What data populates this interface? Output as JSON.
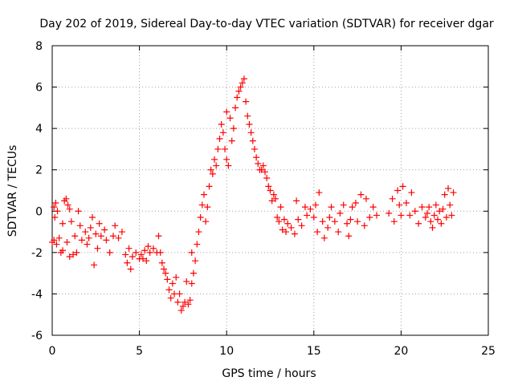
{
  "chart_data": {
    "type": "scatter",
    "title": "Day 202 of 2019, Sidereal Day-to-day VTEC variation (SDTVAR) for receiver dgar",
    "xlabel": "GPS time / hours",
    "ylabel": "SDTVAR / TECUs",
    "xlim": [
      0,
      25
    ],
    "ylim": [
      -6,
      8
    ],
    "xticks": [
      "0",
      "5",
      "10",
      "15",
      "20",
      "25"
    ],
    "yticks": [
      "-6",
      "-4",
      "-2",
      "0",
      "2",
      "4",
      "6",
      "8"
    ],
    "grid": true,
    "marker": "plus",
    "color": "#ff0000",
    "series": [
      {
        "name": "SDTVAR",
        "points": [
          [
            0.0,
            -1.5
          ],
          [
            0.1,
            -1.4
          ],
          [
            0.1,
            0.2
          ],
          [
            0.15,
            -0.3
          ],
          [
            0.2,
            0.4
          ],
          [
            0.25,
            -1.6
          ],
          [
            0.3,
            0.0
          ],
          [
            0.4,
            -1.3
          ],
          [
            0.5,
            -2.0
          ],
          [
            0.6,
            -0.6
          ],
          [
            0.6,
            -1.9
          ],
          [
            0.7,
            0.5
          ],
          [
            0.8,
            0.6
          ],
          [
            0.85,
            -1.5
          ],
          [
            0.9,
            0.3
          ],
          [
            1.0,
            0.1
          ],
          [
            1.0,
            -2.2
          ],
          [
            1.1,
            -0.5
          ],
          [
            1.2,
            -2.1
          ],
          [
            1.3,
            -1.2
          ],
          [
            1.4,
            -2.0
          ],
          [
            1.5,
            0.0
          ],
          [
            1.6,
            -0.7
          ],
          [
            1.7,
            -1.4
          ],
          [
            1.9,
            -1.0
          ],
          [
            2.0,
            -1.6
          ],
          [
            2.1,
            -1.3
          ],
          [
            2.2,
            -0.8
          ],
          [
            2.3,
            -0.3
          ],
          [
            2.4,
            -2.6
          ],
          [
            2.5,
            -1.1
          ],
          [
            2.6,
            -1.8
          ],
          [
            2.7,
            -0.6
          ],
          [
            2.8,
            -1.2
          ],
          [
            3.0,
            -0.9
          ],
          [
            3.1,
            -1.4
          ],
          [
            3.3,
            -2.0
          ],
          [
            3.5,
            -1.2
          ],
          [
            3.6,
            -0.7
          ],
          [
            3.8,
            -1.3
          ],
          [
            4.0,
            -1.0
          ],
          [
            4.2,
            -2.1
          ],
          [
            4.3,
            -2.5
          ],
          [
            4.4,
            -1.8
          ],
          [
            4.5,
            -2.8
          ],
          [
            4.6,
            -2.2
          ],
          [
            4.8,
            -2.0
          ],
          [
            5.0,
            -2.3
          ],
          [
            5.1,
            -2.1
          ],
          [
            5.2,
            -2.3
          ],
          [
            5.3,
            -1.9
          ],
          [
            5.4,
            -2.4
          ],
          [
            5.5,
            -1.7
          ],
          [
            5.6,
            -2.0
          ],
          [
            5.8,
            -1.8
          ],
          [
            6.0,
            -2.0
          ],
          [
            6.1,
            -1.2
          ],
          [
            6.2,
            -2.0
          ],
          [
            6.3,
            -2.5
          ],
          [
            6.4,
            -2.8
          ],
          [
            6.5,
            -3.0
          ],
          [
            6.6,
            -3.3
          ],
          [
            6.7,
            -3.8
          ],
          [
            6.8,
            -4.2
          ],
          [
            6.9,
            -3.5
          ],
          [
            7.0,
            -4.0
          ],
          [
            7.1,
            -3.2
          ],
          [
            7.2,
            -4.4
          ],
          [
            7.3,
            -4.0
          ],
          [
            7.4,
            -4.8
          ],
          [
            7.5,
            -4.6
          ],
          [
            7.6,
            -4.4
          ],
          [
            7.7,
            -3.4
          ],
          [
            7.8,
            -4.5
          ],
          [
            7.9,
            -4.3
          ],
          [
            8.0,
            -2.0
          ],
          [
            8.0,
            -3.5
          ],
          [
            8.1,
            -3.0
          ],
          [
            8.2,
            -2.4
          ],
          [
            8.3,
            -1.6
          ],
          [
            8.4,
            -1.0
          ],
          [
            8.5,
            -0.3
          ],
          [
            8.6,
            0.3
          ],
          [
            8.7,
            0.8
          ],
          [
            8.8,
            -0.5
          ],
          [
            8.9,
            0.2
          ],
          [
            9.0,
            1.2
          ],
          [
            9.1,
            2.0
          ],
          [
            9.2,
            1.8
          ],
          [
            9.3,
            2.5
          ],
          [
            9.4,
            2.2
          ],
          [
            9.5,
            3.0
          ],
          [
            9.6,
            3.5
          ],
          [
            9.7,
            4.2
          ],
          [
            9.8,
            3.8
          ],
          [
            9.9,
            3.0
          ],
          [
            10.0,
            2.5
          ],
          [
            10.0,
            4.8
          ],
          [
            10.1,
            2.2
          ],
          [
            10.2,
            4.5
          ],
          [
            10.3,
            3.4
          ],
          [
            10.4,
            4.0
          ],
          [
            10.5,
            5.0
          ],
          [
            10.6,
            5.5
          ],
          [
            10.7,
            5.8
          ],
          [
            10.8,
            6.0
          ],
          [
            10.9,
            6.2
          ],
          [
            11.0,
            6.4
          ],
          [
            11.1,
            5.3
          ],
          [
            11.2,
            4.6
          ],
          [
            11.3,
            4.2
          ],
          [
            11.4,
            3.8
          ],
          [
            11.5,
            3.4
          ],
          [
            11.6,
            3.0
          ],
          [
            11.7,
            2.6
          ],
          [
            11.8,
            2.3
          ],
          [
            11.9,
            2.0
          ],
          [
            12.0,
            2.0
          ],
          [
            12.1,
            2.2
          ],
          [
            12.2,
            1.9
          ],
          [
            12.3,
            1.6
          ],
          [
            12.4,
            1.2
          ],
          [
            12.5,
            1.0
          ],
          [
            12.6,
            0.5
          ],
          [
            12.7,
            0.8
          ],
          [
            12.8,
            0.6
          ],
          [
            12.9,
            -0.3
          ],
          [
            13.0,
            -0.5
          ],
          [
            13.1,
            0.2
          ],
          [
            13.2,
            -0.9
          ],
          [
            13.3,
            -0.4
          ],
          [
            13.4,
            -1.0
          ],
          [
            13.5,
            -0.6
          ],
          [
            13.7,
            -0.8
          ],
          [
            13.9,
            -1.1
          ],
          [
            14.0,
            0.5
          ],
          [
            14.1,
            -0.4
          ],
          [
            14.3,
            -0.7
          ],
          [
            14.5,
            0.2
          ],
          [
            14.6,
            -0.2
          ],
          [
            14.8,
            0.1
          ],
          [
            15.0,
            -0.3
          ],
          [
            15.1,
            0.3
          ],
          [
            15.2,
            -1.0
          ],
          [
            15.3,
            0.9
          ],
          [
            15.5,
            -0.5
          ],
          [
            15.6,
            -1.3
          ],
          [
            15.8,
            -0.8
          ],
          [
            15.9,
            -0.3
          ],
          [
            16.0,
            0.2
          ],
          [
            16.2,
            -0.5
          ],
          [
            16.4,
            -1.0
          ],
          [
            16.5,
            -0.1
          ],
          [
            16.7,
            0.3
          ],
          [
            16.9,
            -0.6
          ],
          [
            17.0,
            -1.2
          ],
          [
            17.1,
            -0.4
          ],
          [
            17.2,
            0.2
          ],
          [
            17.4,
            0.4
          ],
          [
            17.5,
            -0.5
          ],
          [
            17.7,
            0.8
          ],
          [
            17.9,
            -0.7
          ],
          [
            18.0,
            0.6
          ],
          [
            18.2,
            -0.3
          ],
          [
            18.4,
            0.2
          ],
          [
            18.6,
            -0.2
          ],
          [
            19.3,
            -0.1
          ],
          [
            19.5,
            0.6
          ],
          [
            19.6,
            -0.5
          ],
          [
            19.8,
            1.0
          ],
          [
            19.9,
            0.3
          ],
          [
            20.0,
            -0.2
          ],
          [
            20.1,
            1.2
          ],
          [
            20.3,
            0.4
          ],
          [
            20.5,
            -0.2
          ],
          [
            20.6,
            0.9
          ],
          [
            20.8,
            0.0
          ],
          [
            21.0,
            -0.6
          ],
          [
            21.2,
            0.2
          ],
          [
            21.4,
            -0.3
          ],
          [
            21.5,
            -0.1
          ],
          [
            21.6,
            0.2
          ],
          [
            21.7,
            -0.5
          ],
          [
            21.8,
            -0.8
          ],
          [
            21.9,
            -0.2
          ],
          [
            22.0,
            0.3
          ],
          [
            22.1,
            -0.4
          ],
          [
            22.2,
            0.0
          ],
          [
            22.3,
            -0.6
          ],
          [
            22.4,
            0.1
          ],
          [
            22.5,
            0.8
          ],
          [
            22.6,
            -0.3
          ],
          [
            22.7,
            1.1
          ],
          [
            22.8,
            0.3
          ],
          [
            22.9,
            -0.2
          ],
          [
            23.0,
            0.9
          ]
        ]
      }
    ]
  }
}
